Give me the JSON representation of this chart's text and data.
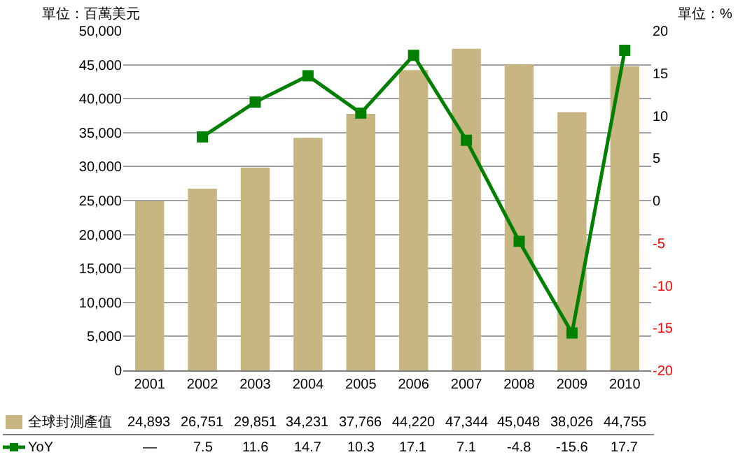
{
  "chart_data": {
    "type": "bar",
    "ylabel": "單位：百萬美元",
    "y2label": "單位：%",
    "categories": [
      "2001",
      "2002",
      "2003",
      "2004",
      "2005",
      "2006",
      "2007",
      "2008",
      "2009",
      "2010"
    ],
    "series": [
      {
        "name": "全球封測產值",
        "color": "#c8b682",
        "values": [
          24893,
          26751,
          29851,
          34231,
          37766,
          44220,
          47344,
          45048,
          38026,
          44755
        ],
        "value_labels": [
          "24,893",
          "26,751",
          "29,851",
          "34,231",
          "37,766",
          "44,220",
          "47,344",
          "45,048",
          "38,026",
          "44,755"
        ]
      },
      {
        "name": "YoY",
        "type": "line",
        "axis": "y2",
        "color": "#008000",
        "marker": "square",
        "values": [
          null,
          7.5,
          11.6,
          14.7,
          10.3,
          17.1,
          7.1,
          -4.8,
          -15.6,
          17.7
        ],
        "value_labels": [
          "—",
          "7.5",
          "11.6",
          "14.7",
          "10.3",
          "17.1",
          "7.1",
          "-4.8",
          "-15.6",
          "17.7"
        ]
      }
    ],
    "ylim": [
      0,
      50000
    ],
    "yticks": [
      {
        "value": 0,
        "label": "0"
      },
      {
        "value": 5000,
        "label": "5,000"
      },
      {
        "value": 10000,
        "label": "10,000"
      },
      {
        "value": 15000,
        "label": "15,000"
      },
      {
        "value": 20000,
        "label": "20,000"
      },
      {
        "value": 25000,
        "label": "25,000"
      },
      {
        "value": 30000,
        "label": "30,000"
      },
      {
        "value": 35000,
        "label": "35,000"
      },
      {
        "value": 40000,
        "label": "40,000"
      },
      {
        "value": 45000,
        "label": "45,000"
      },
      {
        "value": 50000,
        "label": "50,000"
      }
    ],
    "y2lim": [
      -20,
      20
    ],
    "y2ticks": [
      -20,
      -15,
      -10,
      -5,
      0,
      5,
      10,
      15,
      20
    ],
    "grid": "y",
    "legend": "bottom"
  }
}
